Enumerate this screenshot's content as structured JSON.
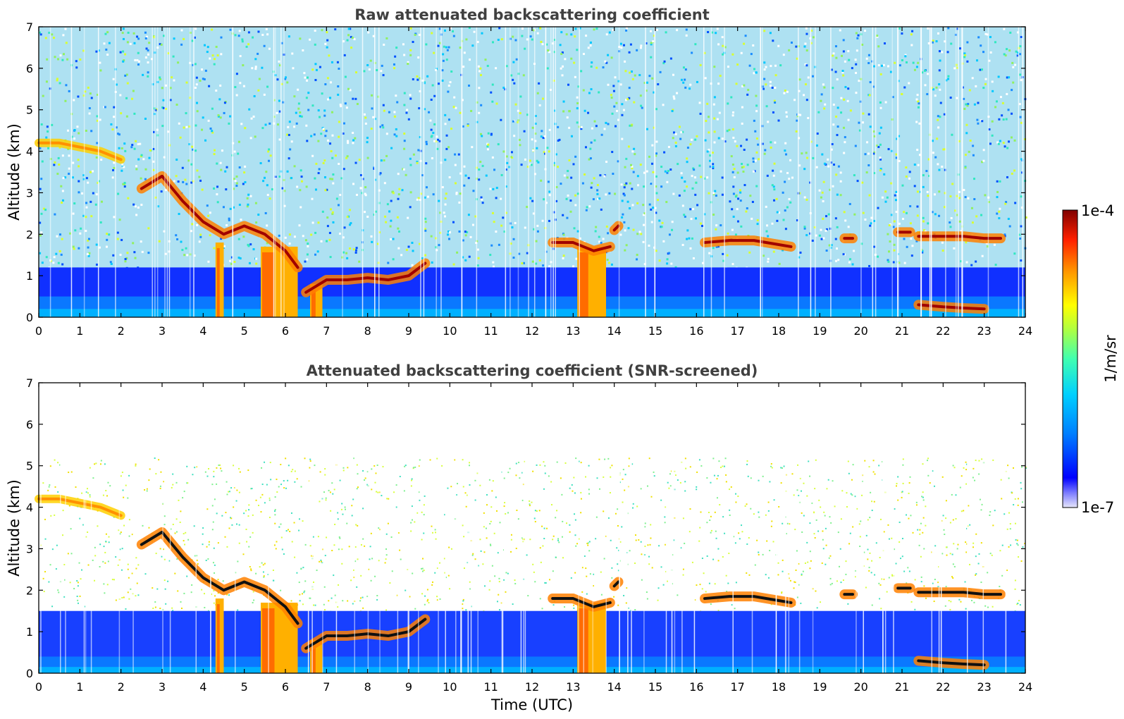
{
  "colorbar": {
    "label": "1/m/sr",
    "max_label": "1e-4",
    "min_label": "1e-7",
    "scale": "log",
    "colormap": [
      "#e6e6fa",
      "#0000ff",
      "#0080ff",
      "#00d0ff",
      "#40ffb0",
      "#b0ff40",
      "#ffff00",
      "#ff9000",
      "#ff2000",
      "#800000"
    ]
  },
  "chart_data": [
    {
      "type": "heatmap",
      "title": "Raw attenuated backscattering coefficient",
      "xlabel": "",
      "ylabel": "Altitude (km)",
      "xlim": [
        0,
        24
      ],
      "ylim": [
        0,
        7
      ],
      "x_ticks": [
        "0",
        "1",
        "2",
        "3",
        "4",
        "5",
        "6",
        "7",
        "8",
        "9",
        "10",
        "11",
        "12",
        "13",
        "14",
        "15",
        "16",
        "17",
        "18",
        "19",
        "20",
        "21",
        "22",
        "23",
        "24"
      ],
      "y_ticks": [
        "0",
        "1",
        "2",
        "3",
        "4",
        "5",
        "6",
        "7"
      ],
      "background_noise": "full",
      "layers": [
        {
          "x": [
            0,
            0.5,
            1,
            1.5,
            2
          ],
          "y": [
            4.2,
            4.2,
            4.1,
            4.0,
            3.8
          ],
          "level": "moderate"
        },
        {
          "x": [
            2.5,
            3,
            3.5,
            4,
            4.5,
            5,
            5.5,
            6,
            6.3
          ],
          "y": [
            3.1,
            3.4,
            2.8,
            2.3,
            2.0,
            2.2,
            2.0,
            1.6,
            1.2
          ],
          "level": "strong"
        },
        {
          "x": [
            6.5,
            7,
            7.5,
            8,
            8.5,
            9,
            9.4
          ],
          "y": [
            0.6,
            0.9,
            0.9,
            0.95,
            0.9,
            1.0,
            1.3
          ],
          "level": "strong"
        },
        {
          "x": [
            12.5,
            13,
            13.5,
            13.9
          ],
          "y": [
            1.8,
            1.8,
            1.6,
            1.7
          ],
          "level": "strong"
        },
        {
          "x": [
            14,
            14.1
          ],
          "y": [
            2.1,
            2.2
          ],
          "level": "strong"
        },
        {
          "x": [
            16.2,
            16.8,
            17.4,
            18.0,
            18.3
          ],
          "y": [
            1.8,
            1.85,
            1.85,
            1.75,
            1.7
          ],
          "level": "strong"
        },
        {
          "x": [
            19.6,
            19.8
          ],
          "y": [
            1.9,
            1.9
          ],
          "level": "strong"
        },
        {
          "x": [
            20.9,
            21.2
          ],
          "y": [
            2.05,
            2.05
          ],
          "level": "strong"
        },
        {
          "x": [
            21.4,
            22,
            22.5,
            23,
            23.4
          ],
          "y": [
            1.95,
            1.95,
            1.95,
            1.9,
            1.9
          ],
          "level": "strong"
        },
        {
          "x": [
            21.4,
            22,
            22.5,
            23.0
          ],
          "y": [
            0.3,
            0.25,
            0.22,
            0.2
          ],
          "level": "strong"
        }
      ],
      "columns": [
        {
          "x0": 4.3,
          "x1": 4.5,
          "top": 1.8
        },
        {
          "x0": 5.4,
          "x1": 6.3,
          "top": 1.7
        },
        {
          "x0": 6.6,
          "x1": 6.9,
          "top": 0.8
        },
        {
          "x0": 13.1,
          "x1": 13.8,
          "top": 1.7
        }
      ]
    },
    {
      "type": "heatmap",
      "title": "Attenuated backscattering coefficient (SNR-screened)",
      "xlabel": "Time (UTC)",
      "ylabel": "Altitude (km)",
      "xlim": [
        0,
        24
      ],
      "ylim": [
        0,
        7
      ],
      "x_ticks": [
        "0",
        "1",
        "2",
        "3",
        "4",
        "5",
        "6",
        "7",
        "8",
        "9",
        "10",
        "11",
        "12",
        "13",
        "14",
        "15",
        "16",
        "17",
        "18",
        "19",
        "20",
        "21",
        "22",
        "23",
        "24"
      ],
      "y_ticks": [
        "0",
        "1",
        "2",
        "3",
        "4",
        "5",
        "6",
        "7"
      ],
      "background_noise": "screened",
      "layers": [
        {
          "x": [
            0,
            0.5,
            1,
            1.5,
            2
          ],
          "y": [
            4.2,
            4.2,
            4.1,
            4.0,
            3.8
          ],
          "level": "moderate"
        },
        {
          "x": [
            2.5,
            3,
            3.5,
            4,
            4.5,
            5,
            5.5,
            6,
            6.3
          ],
          "y": [
            3.1,
            3.4,
            2.8,
            2.3,
            2.0,
            2.2,
            2.0,
            1.6,
            1.2
          ],
          "level": "strong"
        },
        {
          "x": [
            6.5,
            7,
            7.5,
            8,
            8.5,
            9,
            9.4
          ],
          "y": [
            0.6,
            0.9,
            0.9,
            0.95,
            0.9,
            1.0,
            1.3
          ],
          "level": "strong"
        },
        {
          "x": [
            12.5,
            13,
            13.5,
            13.9
          ],
          "y": [
            1.8,
            1.8,
            1.6,
            1.7
          ],
          "level": "strong"
        },
        {
          "x": [
            14,
            14.1
          ],
          "y": [
            2.1,
            2.2
          ],
          "level": "strong"
        },
        {
          "x": [
            16.2,
            16.8,
            17.4,
            18.0,
            18.3
          ],
          "y": [
            1.8,
            1.85,
            1.85,
            1.75,
            1.7
          ],
          "level": "strong"
        },
        {
          "x": [
            19.6,
            19.8
          ],
          "y": [
            1.9,
            1.9
          ],
          "level": "strong"
        },
        {
          "x": [
            20.9,
            21.2
          ],
          "y": [
            2.05,
            2.05
          ],
          "level": "strong"
        },
        {
          "x": [
            21.4,
            22,
            22.5,
            23,
            23.4
          ],
          "y": [
            1.95,
            1.95,
            1.95,
            1.9,
            1.9
          ],
          "level": "strong"
        },
        {
          "x": [
            21.4,
            22,
            22.5,
            23.0
          ],
          "y": [
            0.3,
            0.25,
            0.22,
            0.2
          ],
          "level": "strong"
        }
      ],
      "columns": [
        {
          "x0": 4.3,
          "x1": 4.5,
          "top": 1.8
        },
        {
          "x0": 5.4,
          "x1": 6.3,
          "top": 1.7
        },
        {
          "x0": 6.6,
          "x1": 6.9,
          "top": 0.8
        },
        {
          "x0": 13.1,
          "x1": 13.8,
          "top": 1.7
        }
      ]
    }
  ]
}
